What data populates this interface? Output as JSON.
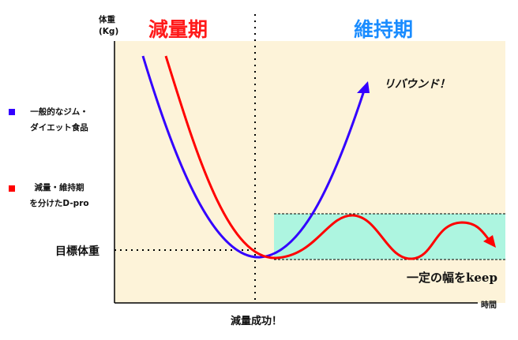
{
  "axes": {
    "y_label_line1": "体重",
    "y_label_line2": "(Kg)",
    "x_label": "時間",
    "target_label": "目標体重",
    "success_label": "減量成功！"
  },
  "phases": {
    "loss": "減量期",
    "maintain": "維持期"
  },
  "legend": [
    {
      "line1": "一般的なジム・",
      "line2": "ダイエット食品",
      "color": "#3300ff"
    },
    {
      "line1": "減量・維持期",
      "line2": "を分けたD-pro",
      "color": "#ff0000"
    }
  ],
  "annotations": {
    "rebound": "リバウンド！",
    "keep_range": "一定の幅をkeep"
  },
  "colors": {
    "background_panel": "#fdf3d9",
    "band": "#adf5e0",
    "loss_phase": "#ff1a1a",
    "maintain_phase": "#1a8cff"
  }
}
